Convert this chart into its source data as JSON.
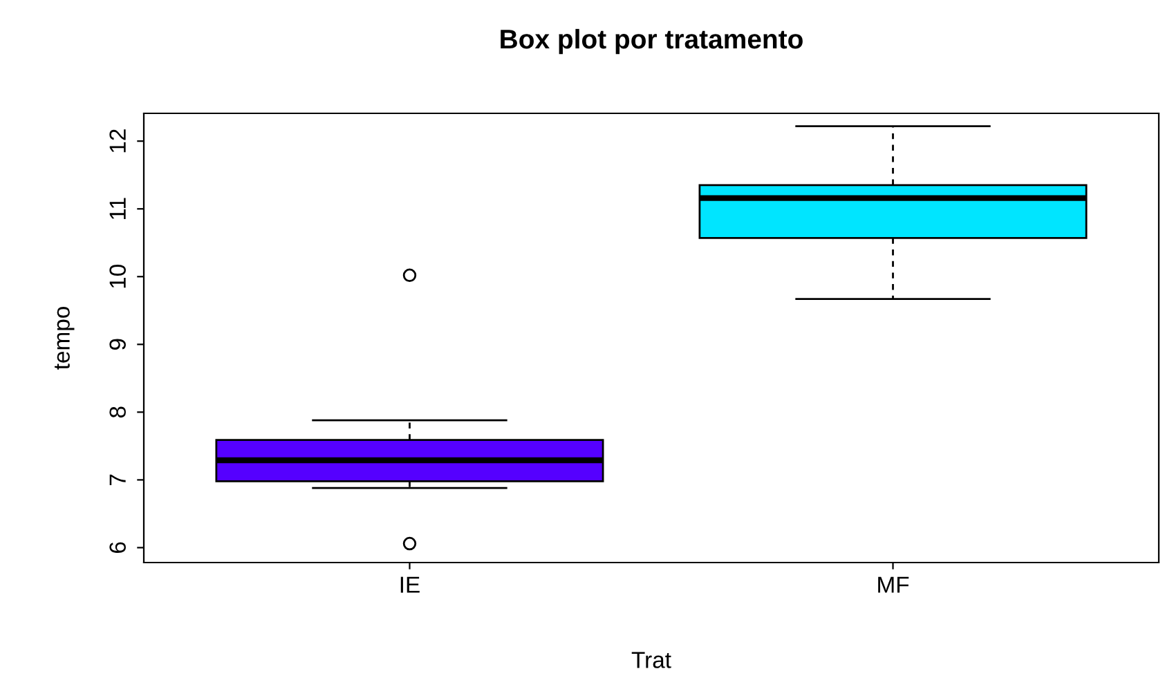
{
  "chart_data": {
    "type": "box",
    "title": "Box plot por tratamento",
    "xlabel": "Trat",
    "ylabel": "tempo",
    "categories": [
      "IE",
      "MF"
    ],
    "colors": [
      "#5500ff",
      "#00e5ff"
    ],
    "boxes": [
      {
        "low": 6.88,
        "q1": 6.98,
        "median": 7.29,
        "q3": 7.59,
        "high": 7.88,
        "outliers": [
          10.02,
          6.06
        ]
      },
      {
        "low": 9.67,
        "q1": 10.57,
        "median": 11.16,
        "q3": 11.35,
        "high": 12.22
      }
    ],
    "ylim": [
      5.78,
      12.41
    ],
    "yticks": [
      6,
      7,
      8,
      9,
      10,
      11,
      12
    ],
    "grid": false,
    "legend": false
  }
}
